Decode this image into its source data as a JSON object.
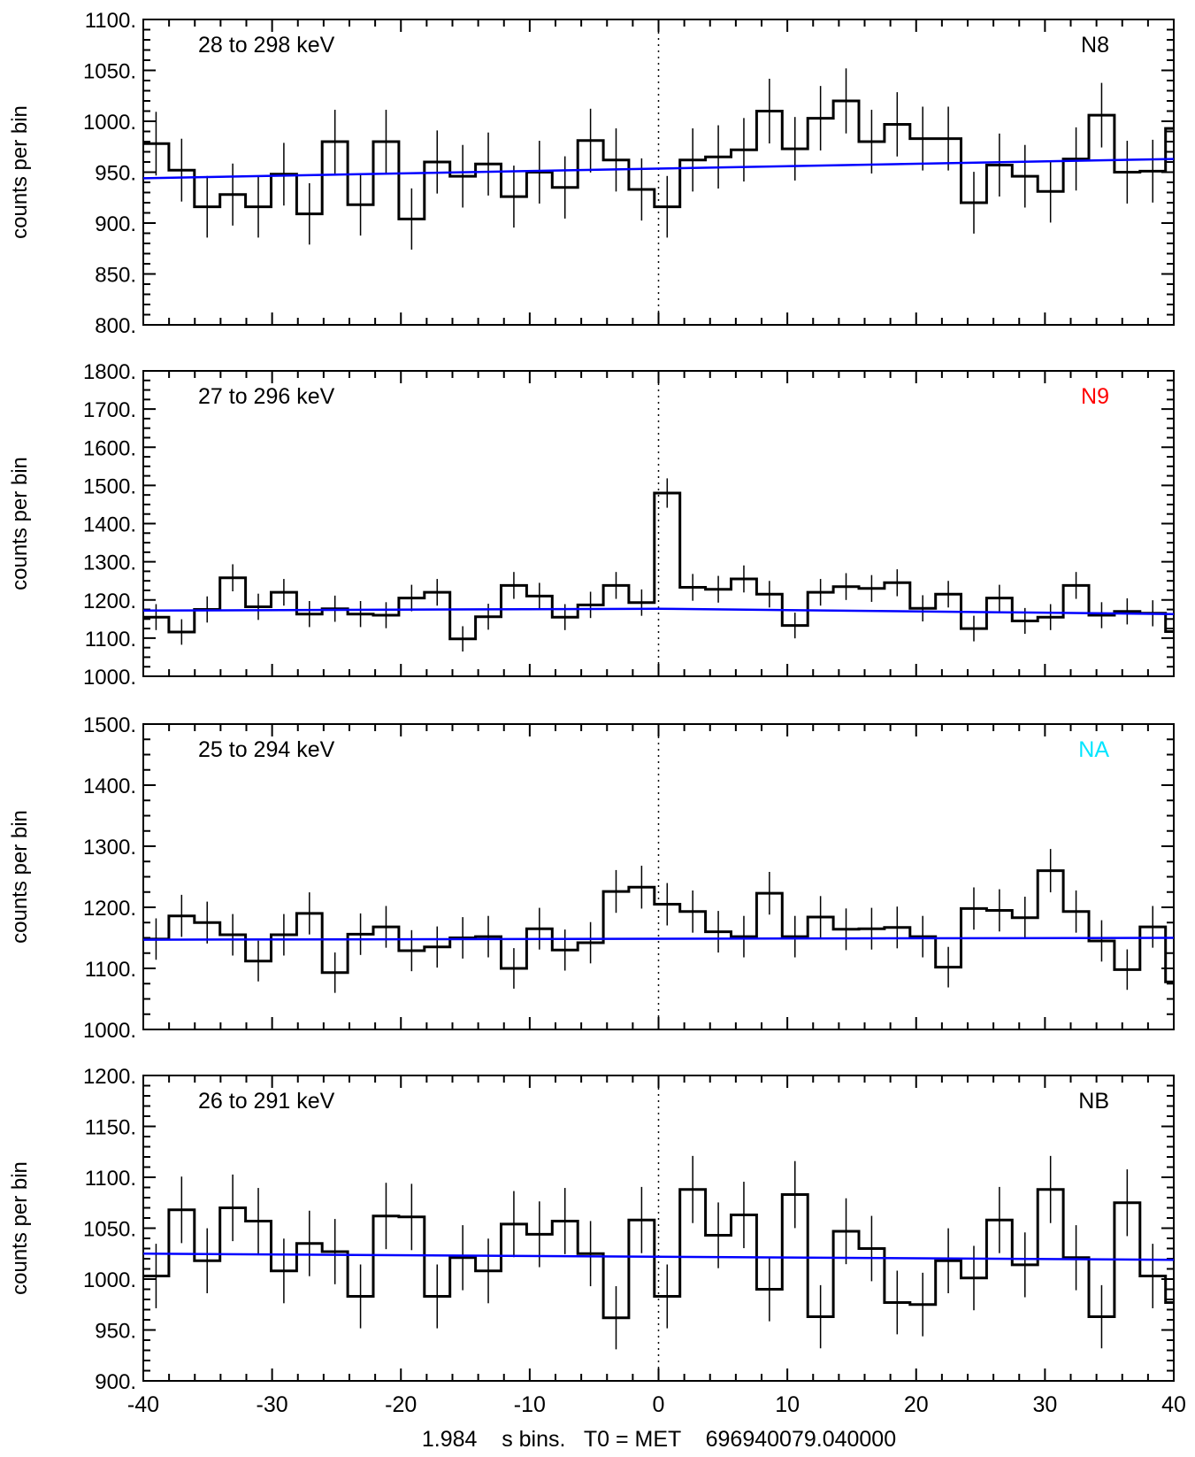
{
  "figure": {
    "xlabel": "1.984    s bins.   T0 = MET    696940079.040000",
    "ylabel": "counts per bin",
    "x_ticks": [
      -40,
      -30,
      -20,
      -10,
      0,
      10,
      20,
      30,
      40
    ],
    "x_tick_labels": [
      "-40",
      "-30",
      "-20",
      "-10",
      "0",
      "10",
      "20",
      "30",
      "40"
    ]
  },
  "chart_data": [
    {
      "type": "line",
      "detector": "N8",
      "detector_color": "#000000",
      "energy_label": "28 to 298 keV",
      "ylabel": "counts per bin",
      "xlabel": "1.984    s bins.   T0 = MET    696940079.040000",
      "xlim": [
        -40,
        40
      ],
      "ylim": [
        800,
        1100
      ],
      "y_ticks": [
        800,
        850,
        900,
        950,
        1000,
        1050,
        1100
      ],
      "y_tick_labels": [
        "800.",
        "850.",
        "900.",
        "950.",
        "1000.",
        "1050.",
        "1100."
      ],
      "y_minor_step": 10,
      "bin_width": 1.984,
      "bin_start": -40.0,
      "counts": [
        978,
        952,
        916,
        928,
        916,
        948,
        909,
        980,
        918,
        980,
        904,
        960,
        946,
        958,
        926,
        950,
        935,
        981,
        962,
        933,
        916,
        962,
        965,
        972,
        1010,
        973,
        1003,
        1020,
        980,
        997,
        983,
        983,
        920,
        957,
        946,
        931,
        963,
        1006,
        950,
        951,
        993
      ],
      "background_fit": {
        "x": [
          -40,
          40
        ],
        "y": [
          944,
          963
        ]
      },
      "fit_color": "#0000ff",
      "grid": false
    },
    {
      "type": "line",
      "detector": "N9",
      "detector_color": "#ff0000",
      "energy_label": "27 to 296 keV",
      "ylabel": "counts per bin",
      "xlim": [
        -40,
        40
      ],
      "ylim": [
        1000,
        1800
      ],
      "y_ticks": [
        1000,
        1100,
        1200,
        1300,
        1400,
        1500,
        1600,
        1700,
        1800
      ],
      "y_tick_labels": [
        "1000.",
        "1100.",
        "1200.",
        "1300.",
        "1400.",
        "1500.",
        "1600.",
        "1700.",
        "1800."
      ],
      "y_minor_step": 25,
      "bin_width": 1.984,
      "bin_start": -40.0,
      "counts": [
        1155,
        1116,
        1175,
        1258,
        1182,
        1220,
        1163,
        1177,
        1163,
        1160,
        1205,
        1220,
        1098,
        1156,
        1238,
        1210,
        1155,
        1187,
        1238,
        1193,
        1480,
        1233,
        1228,
        1255,
        1215,
        1133,
        1220,
        1235,
        1230,
        1245,
        1178,
        1215,
        1125,
        1205,
        1145,
        1155,
        1238,
        1160,
        1170,
        1165,
        1117
      ],
      "background_fit": {
        "x": [
          -40,
          0,
          40
        ],
        "y": [
          1172,
          1177,
          1163
        ]
      },
      "fit_color": "#0000ff",
      "grid": false
    },
    {
      "type": "line",
      "detector": "NA",
      "detector_color": "#00e5ff",
      "energy_label": "25 to 294 keV",
      "ylabel": "counts per bin",
      "xlim": [
        -40,
        40
      ],
      "ylim": [
        1000,
        1500
      ],
      "y_ticks": [
        1000,
        1100,
        1200,
        1300,
        1400,
        1500
      ],
      "y_tick_labels": [
        "1000.",
        "1100.",
        "1200.",
        "1300.",
        "1400.",
        "1500."
      ],
      "y_minor_step": 25,
      "bin_width": 1.984,
      "bin_start": -40.0,
      "counts": [
        1148,
        1186,
        1175,
        1155,
        1112,
        1155,
        1190,
        1093,
        1156,
        1168,
        1129,
        1135,
        1150,
        1152,
        1100,
        1165,
        1130,
        1142,
        1226,
        1233,
        1205,
        1193,
        1160,
        1152,
        1223,
        1152,
        1184,
        1164,
        1165,
        1167,
        1152,
        1102,
        1198,
        1195,
        1183,
        1260,
        1193,
        1145,
        1098,
        1168,
        1078
      ],
      "background_fit": {
        "x": [
          -40,
          40
        ],
        "y": [
          1147,
          1150
        ]
      },
      "fit_color": "#0000ff",
      "grid": false
    },
    {
      "type": "line",
      "detector": "NB",
      "detector_color": "#000000",
      "energy_label": "26 to 291 keV",
      "ylabel": "counts per bin",
      "xlim": [
        -40,
        40
      ],
      "ylim": [
        900,
        1200
      ],
      "y_ticks": [
        900,
        950,
        1000,
        1050,
        1100,
        1150,
        1200
      ],
      "y_tick_labels": [
        "900.",
        "950.",
        "1000.",
        "1050.",
        "1100.",
        "1150.",
        "1200."
      ],
      "y_minor_step": 10,
      "bin_width": 1.984,
      "bin_start": -40.0,
      "counts": [
        1003,
        1068,
        1018,
        1070,
        1057,
        1008,
        1035,
        1027,
        983,
        1062,
        1061,
        983,
        1021,
        1008,
        1054,
        1044,
        1057,
        1025,
        962,
        1058,
        983,
        1088,
        1043,
        1063,
        990,
        1083,
        963,
        1047,
        1030,
        977,
        975,
        1018,
        1001,
        1058,
        1014,
        1088,
        1021,
        963,
        1075,
        1003,
        977
      ],
      "background_fit": {
        "x": [
          -40,
          40
        ],
        "y": [
          1025,
          1019
        ]
      },
      "fit_color": "#0000ff",
      "grid": false
    }
  ]
}
